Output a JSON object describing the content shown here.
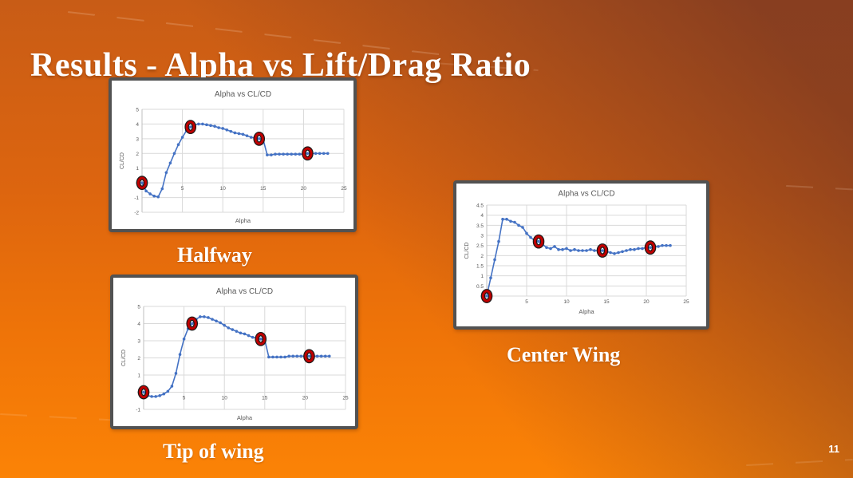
{
  "slide": {
    "title": "Results - Alpha vs Lift/Drag Ratio",
    "page_number": "11",
    "colors": {
      "background_bright": "#fb8306",
      "background_dark": "#8e4a33",
      "panel_border": "#525252",
      "text": "#ffffff"
    }
  },
  "chart_data": [
    {
      "id": "halfway",
      "type": "scatter",
      "caption": "Halfway",
      "title": "Alpha vs CL/CD",
      "xlabel": "Alpha",
      "ylabel": "CL/CD",
      "xlim": [
        0,
        25
      ],
      "ylim": [
        -2,
        5
      ],
      "xticks": [
        0,
        5,
        10,
        15,
        20,
        25
      ],
      "yticks": [
        5,
        4,
        3,
        2,
        1,
        0,
        -1,
        -2
      ],
      "grid": true,
      "x_start": 0,
      "x_step": 0.5,
      "values": [
        0,
        -0.55,
        -0.75,
        -0.9,
        -0.95,
        -0.4,
        0.7,
        1.35,
        2.0,
        2.6,
        3.1,
        3.55,
        3.8,
        3.95,
        4.0,
        4.0,
        3.95,
        3.9,
        3.85,
        3.75,
        3.7,
        3.6,
        3.5,
        3.4,
        3.35,
        3.3,
        3.2,
        3.1,
        3.05,
        3.0,
        2.95,
        1.9,
        1.9,
        1.95,
        1.95,
        1.95,
        1.95,
        1.95,
        1.95,
        1.95,
        1.95,
        2.0,
        2.0,
        2.0,
        2.0,
        2.0,
        2.0
      ],
      "circled_x": [
        0,
        6,
        14.5,
        20.5
      ],
      "line_color": "#4472c4",
      "circle_color": "#c00000",
      "gridline_color": "#d9d9d9"
    },
    {
      "id": "tip-of-wing",
      "type": "scatter",
      "caption": "Tip of wing",
      "title": "Alpha vs CL/CD",
      "xlabel": "Alpha",
      "ylabel": "CL/CD",
      "xlim": [
        0,
        25
      ],
      "ylim": [
        -1,
        5
      ],
      "xticks": [
        0,
        5,
        10,
        15,
        20,
        25
      ],
      "yticks": [
        5,
        4,
        3,
        2,
        1,
        0,
        -1
      ],
      "grid": true,
      "x_start": 0,
      "x_step": 0.5,
      "values": [
        0,
        -0.2,
        -0.25,
        -0.25,
        -0.2,
        -0.1,
        0.05,
        0.35,
        1.1,
        2.2,
        3.1,
        3.7,
        4.0,
        4.25,
        4.4,
        4.4,
        4.35,
        4.25,
        4.15,
        4.05,
        3.9,
        3.75,
        3.65,
        3.55,
        3.45,
        3.4,
        3.3,
        3.2,
        3.15,
        3.1,
        3.05,
        2.05,
        2.05,
        2.05,
        2.05,
        2.05,
        2.1,
        2.1,
        2.1,
        2.1,
        2.1,
        2.1,
        2.1,
        2.1,
        2.1,
        2.1,
        2.1
      ],
      "circled_x": [
        0,
        6,
        14.5,
        20.5
      ],
      "line_color": "#4472c4",
      "circle_color": "#c00000",
      "gridline_color": "#d9d9d9"
    },
    {
      "id": "center-wing",
      "type": "scatter",
      "caption": "Center Wing",
      "title": "Alpha vs CL/CD",
      "xlabel": "Alpha",
      "ylabel": "CL/CD",
      "xlim": [
        0,
        25
      ],
      "ylim": [
        0,
        4.5
      ],
      "xticks": [
        0,
        5,
        10,
        15,
        20,
        25
      ],
      "yticks": [
        4.5,
        4,
        3.5,
        3,
        2.5,
        2,
        1.5,
        1,
        0.5,
        0
      ],
      "grid": true,
      "x_start": 0,
      "x_step": 0.5,
      "values": [
        0,
        0.9,
        1.8,
        2.7,
        3.8,
        3.8,
        3.7,
        3.65,
        3.5,
        3.4,
        3.1,
        2.9,
        2.75,
        2.7,
        2.55,
        2.4,
        2.35,
        2.45,
        2.3,
        2.3,
        2.35,
        2.25,
        2.3,
        2.25,
        2.25,
        2.25,
        2.3,
        2.25,
        2.25,
        2.25,
        2.2,
        2.15,
        2.1,
        2.15,
        2.2,
        2.25,
        2.3,
        2.3,
        2.35,
        2.35,
        2.4,
        2.4,
        2.45,
        2.45,
        2.5,
        2.5,
        2.5
      ],
      "circled_x": [
        0,
        6.5,
        14.5,
        20.5
      ],
      "line_color": "#4472c4",
      "circle_color": "#c00000",
      "gridline_color": "#d9d9d9"
    }
  ]
}
